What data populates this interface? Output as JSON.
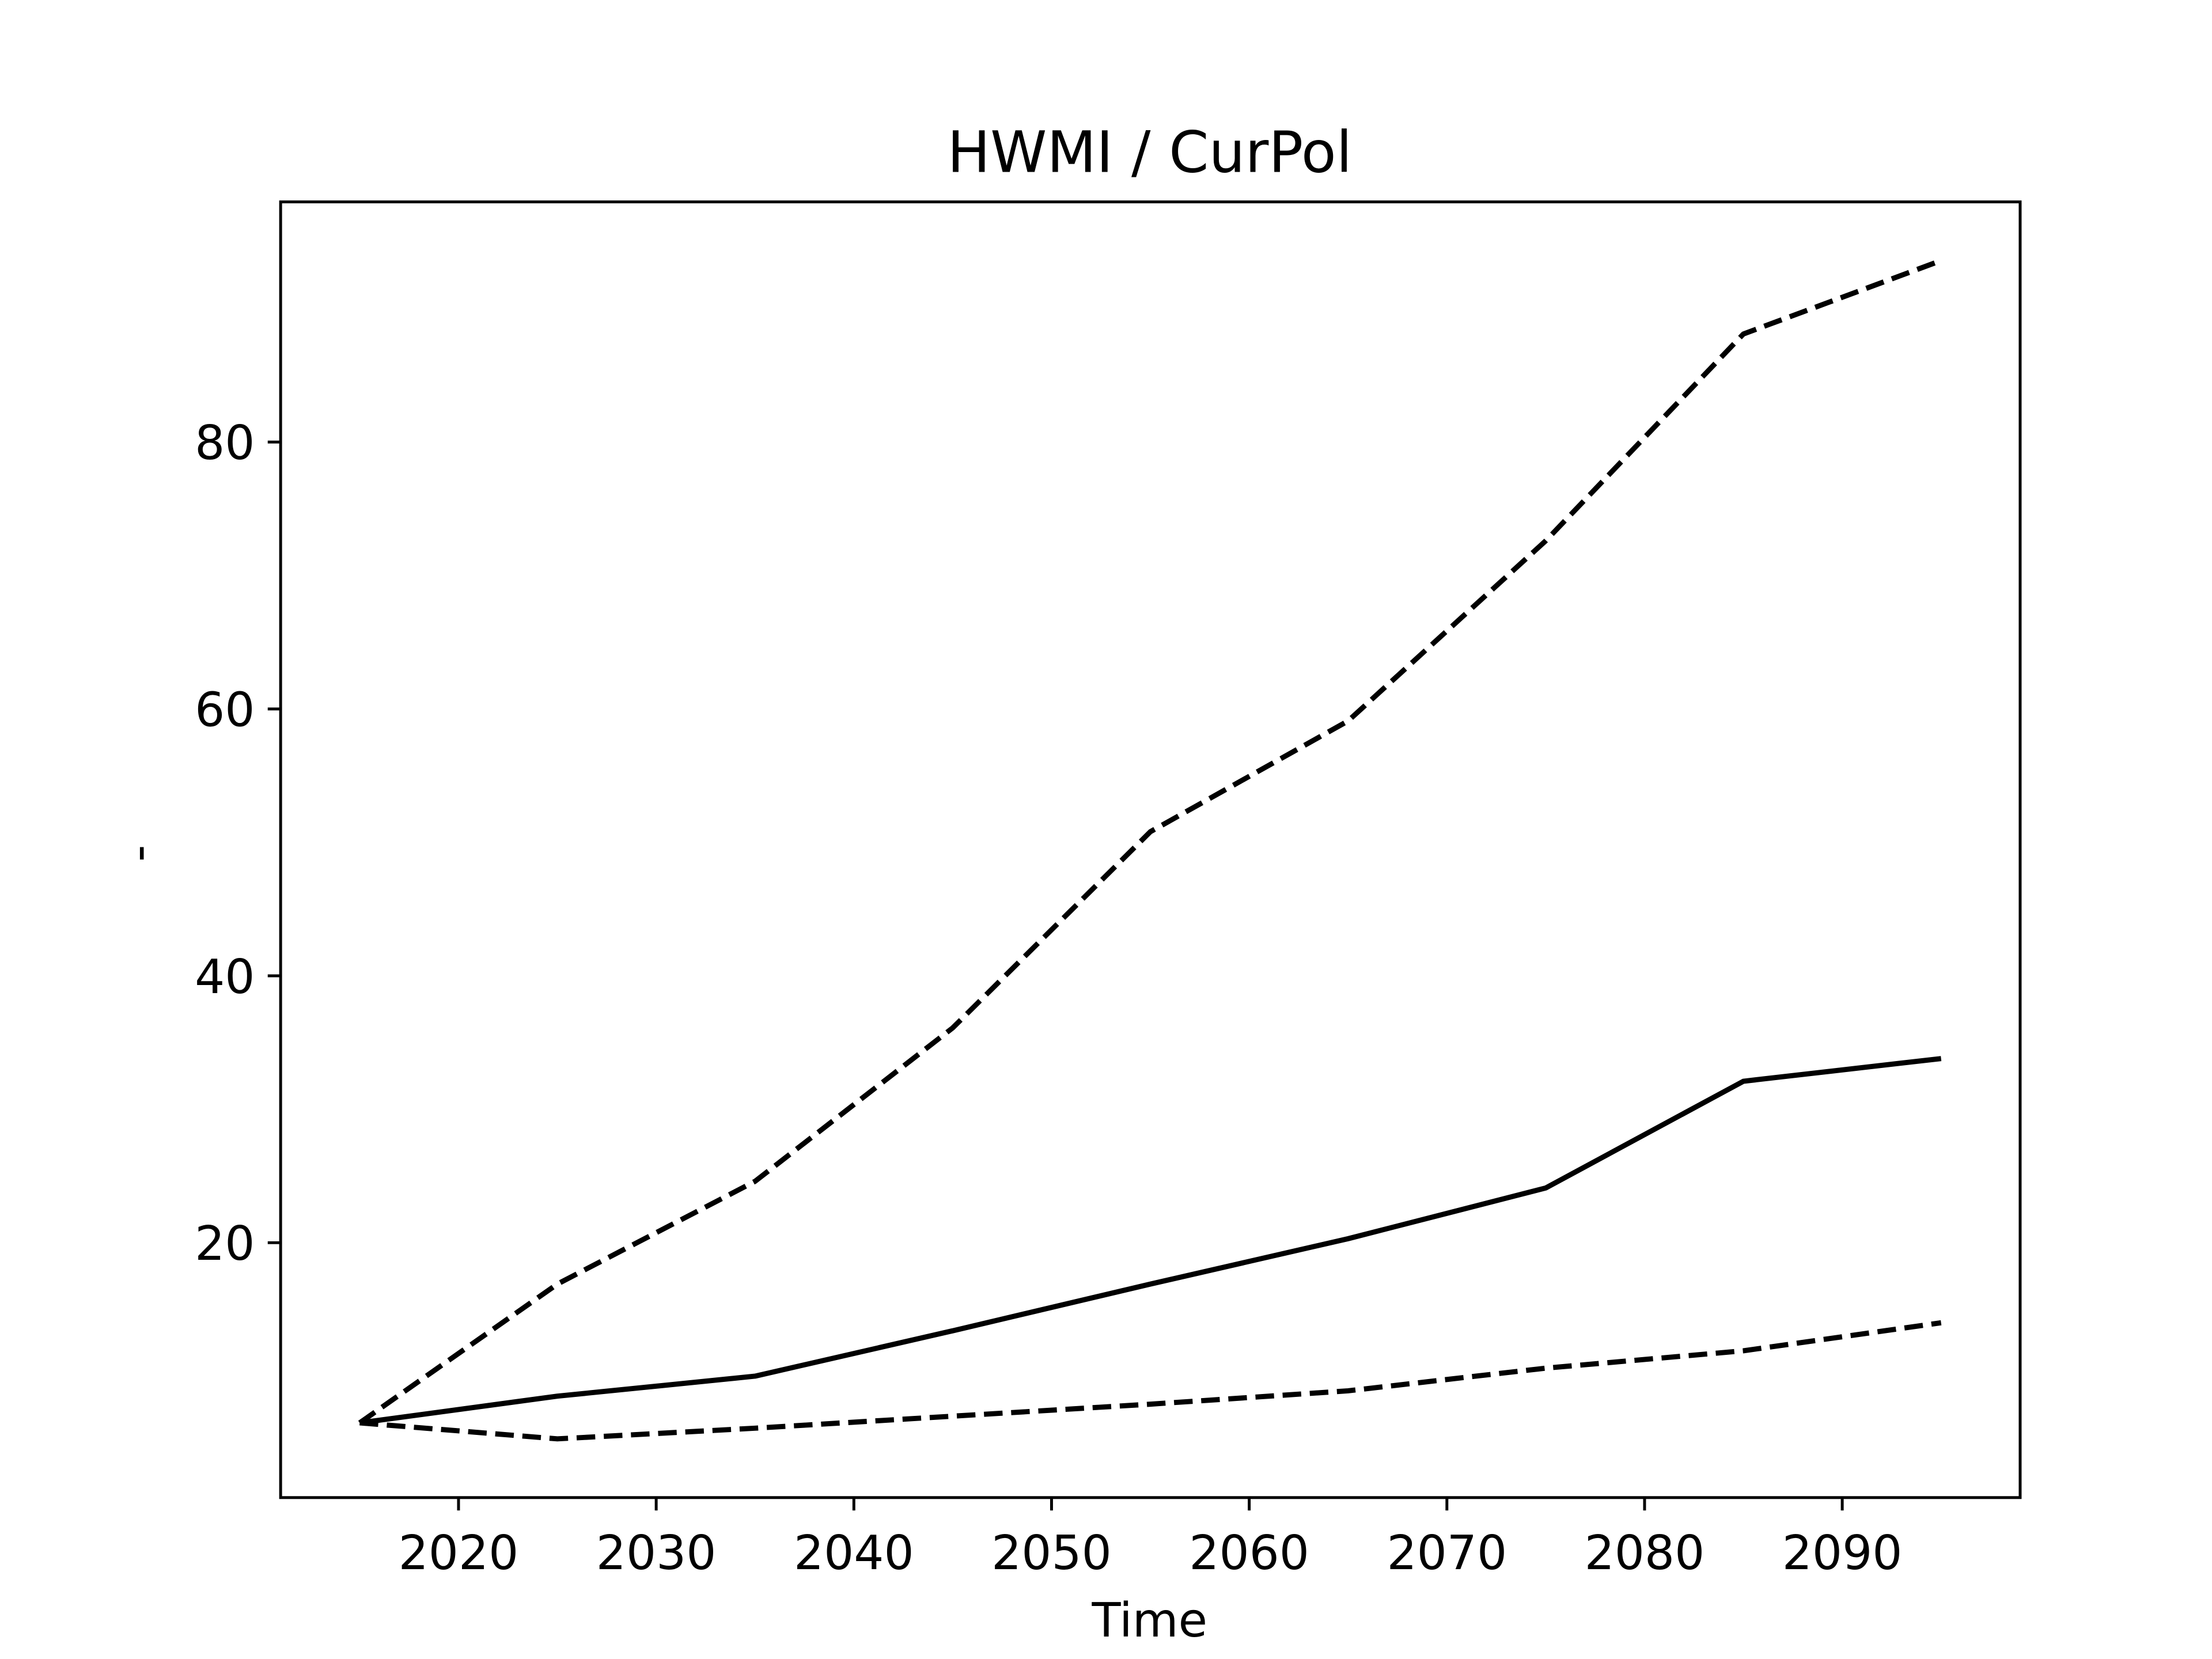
{
  "chart_data": {
    "type": "line",
    "title": "HWMI / CurPol",
    "xlabel": "Time",
    "ylabel": "-",
    "x": [
      2015,
      2025,
      2035,
      2045,
      2055,
      2065,
      2075,
      2085,
      2095
    ],
    "series": [
      {
        "color": "#000000",
        "style": "solid",
        "values": [
          6.5,
          8.5,
          10.0,
          13.4,
          16.9,
          20.3,
          24.1,
          32.1,
          33.8
        ]
      },
      {
        "color": "#000000",
        "style": "dashed",
        "values": [
          6.5,
          16.9,
          24.6,
          36.1,
          50.8,
          59.1,
          72.6,
          88.1,
          93.6
        ]
      },
      {
        "color": "#000000",
        "style": "dashed",
        "values": [
          6.5,
          5.3,
          6.1,
          7.0,
          7.9,
          8.9,
          10.6,
          11.9,
          14.0
        ]
      }
    ],
    "xlim": [
      2011,
      2099
    ],
    "xticks": [
      2020,
      2030,
      2040,
      2050,
      2060,
      2070,
      2080,
      2090
    ],
    "ylim": [
      0.9,
      98
    ],
    "yticks": [
      20,
      40,
      60,
      80
    ],
    "grid": false
  }
}
